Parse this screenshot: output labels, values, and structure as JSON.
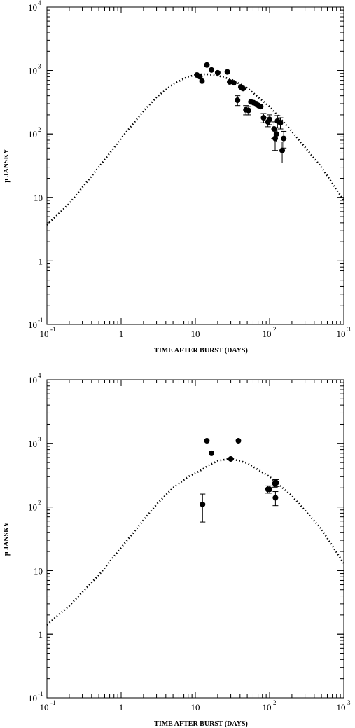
{
  "chart_data": [
    {
      "type": "scatter",
      "xlabel": "TIME AFTER BURST (DAYS)",
      "ylabel": "μ JANSKY",
      "xscale": "log",
      "yscale": "log",
      "xlim": [
        0.1,
        1000
      ],
      "ylim": [
        0.1,
        10000
      ],
      "x_ticks": [
        {
          "value": 0.1,
          "base": "10",
          "exp": "-1"
        },
        {
          "value": 1,
          "base": "1",
          "exp": ""
        },
        {
          "value": 10,
          "base": "10",
          "exp": ""
        },
        {
          "value": 100,
          "base": "10",
          "exp": "2"
        },
        {
          "value": 1000,
          "base": "10",
          "exp": "3"
        }
      ],
      "y_ticks": [
        {
          "value": 0.1,
          "base": "10",
          "exp": "-1"
        },
        {
          "value": 1,
          "base": "1",
          "exp": ""
        },
        {
          "value": 10,
          "base": "10",
          "exp": ""
        },
        {
          "value": 100,
          "base": "10",
          "exp": "2"
        },
        {
          "value": 1000,
          "base": "10",
          "exp": "3"
        },
        {
          "value": 10000,
          "base": "10",
          "exp": "4"
        }
      ],
      "model_curve": {
        "style": "dotted",
        "x": [
          0.1,
          0.2,
          0.5,
          1,
          2,
          3,
          5,
          8,
          10,
          12,
          15,
          20,
          30,
          50,
          100,
          200,
          500,
          1000
        ],
        "y": [
          3.7,
          8,
          30,
          85,
          230,
          380,
          610,
          800,
          850,
          870,
          870,
          830,
          730,
          530,
          270,
          110,
          30,
          9
        ]
      },
      "points": [
        {
          "x": 10.5,
          "y": 850
        },
        {
          "x": 11.5,
          "y": 800
        },
        {
          "x": 12.3,
          "y": 680
        },
        {
          "x": 14.3,
          "y": 1220
        },
        {
          "x": 16.5,
          "y": 1020
        },
        {
          "x": 20,
          "y": 920
        },
        {
          "x": 27,
          "y": 950
        },
        {
          "x": 29,
          "y": 660
        },
        {
          "x": 33,
          "y": 640
        },
        {
          "x": 37,
          "y": 340,
          "err": 60
        },
        {
          "x": 41,
          "y": 550
        },
        {
          "x": 44,
          "y": 520
        },
        {
          "x": 48,
          "y": 240,
          "err": 40
        },
        {
          "x": 52,
          "y": 235,
          "err": 35
        },
        {
          "x": 56,
          "y": 320
        },
        {
          "x": 61,
          "y": 310
        },
        {
          "x": 66,
          "y": 300
        },
        {
          "x": 71,
          "y": 280
        },
        {
          "x": 76,
          "y": 270
        },
        {
          "x": 83,
          "y": 180,
          "err": 30
        },
        {
          "x": 95,
          "y": 155,
          "err": 25
        },
        {
          "x": 100,
          "y": 170,
          "err": 30
        },
        {
          "x": 115,
          "y": 120,
          "err": 35
        },
        {
          "x": 119,
          "y": 85,
          "err": 30
        },
        {
          "x": 124,
          "y": 100,
          "err": 25
        },
        {
          "x": 128,
          "y": 160,
          "err": 35
        },
        {
          "x": 140,
          "y": 150,
          "err": 30
        },
        {
          "x": 148,
          "y": 55,
          "err": 20
        },
        {
          "x": 155,
          "y": 85,
          "err": 25
        }
      ]
    },
    {
      "type": "scatter",
      "xlabel": "TIME AFTER BURST (DAYS)",
      "ylabel": "μ JANSKY",
      "xscale": "log",
      "yscale": "log",
      "xlim": [
        0.1,
        1000
      ],
      "ylim": [
        0.1,
        10000
      ],
      "x_ticks": [
        {
          "value": 0.1,
          "base": "10",
          "exp": "-1"
        },
        {
          "value": 1,
          "base": "1",
          "exp": ""
        },
        {
          "value": 10,
          "base": "10",
          "exp": ""
        },
        {
          "value": 100,
          "base": "10",
          "exp": "2"
        },
        {
          "value": 1000,
          "base": "10",
          "exp": "3"
        }
      ],
      "y_ticks": [
        {
          "value": 0.1,
          "base": "10",
          "exp": "-1"
        },
        {
          "value": 1,
          "base": "1",
          "exp": ""
        },
        {
          "value": 10,
          "base": "10",
          "exp": ""
        },
        {
          "value": 100,
          "base": "10",
          "exp": "2"
        },
        {
          "value": 1000,
          "base": "10",
          "exp": "3"
        },
        {
          "value": 10000,
          "base": "10",
          "exp": "4"
        }
      ],
      "model_curve": {
        "style": "dotted",
        "x": [
          0.1,
          0.2,
          0.5,
          1,
          2,
          3,
          5,
          8,
          10,
          12,
          15,
          20,
          30,
          50,
          100,
          200,
          500,
          1000
        ],
        "y": [
          1.4,
          2.8,
          8.5,
          23,
          62,
          110,
          200,
          300,
          340,
          380,
          450,
          530,
          580,
          490,
          300,
          150,
          45,
          13
        ]
      },
      "points": [
        {
          "x": 12.5,
          "y": 110,
          "err_up": 50,
          "err_down": 52
        },
        {
          "x": 14.3,
          "y": 1100
        },
        {
          "x": 16.5,
          "y": 700
        },
        {
          "x": 30,
          "y": 570
        },
        {
          "x": 38,
          "y": 1100
        },
        {
          "x": 95,
          "y": 190,
          "err": 25
        },
        {
          "x": 100,
          "y": 190,
          "err": 25
        },
        {
          "x": 118,
          "y": 235,
          "err": 30
        },
        {
          "x": 123,
          "y": 240,
          "err": 30
        },
        {
          "x": 120,
          "y": 140,
          "err": 35
        }
      ]
    }
  ]
}
